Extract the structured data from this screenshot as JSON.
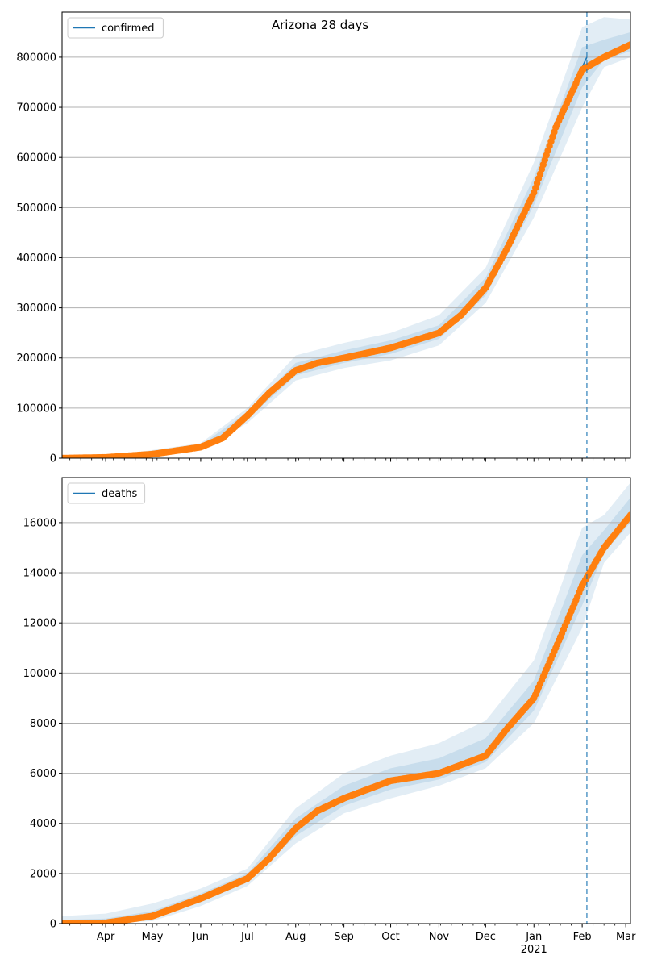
{
  "figure": {
    "title": "Arizona 28 days"
  },
  "colors": {
    "fit_line": "#1f77b4",
    "observed": "#ff7f0e",
    "band": "#1f77b4",
    "grid": "#b0b0b0",
    "forecast_marker": "#1f77b4"
  },
  "chart_data": [
    {
      "type": "line",
      "name": "confirmed-panel",
      "title": "Arizona 28 days",
      "xlabel": "",
      "ylabel": "",
      "x_type": "date",
      "xlim": [
        "2020-03-04",
        "2021-03-04"
      ],
      "ylim": [
        0,
        890000
      ],
      "yticks": [
        0,
        100000,
        200000,
        300000,
        400000,
        500000,
        600000,
        700000,
        800000
      ],
      "grid": "horizontal",
      "legend": {
        "position": "upper left",
        "entries": [
          "confirmed"
        ]
      },
      "forecast_start": "2021-02-04",
      "series": [
        {
          "name": "confirmed",
          "style": "line",
          "points": [
            [
              "2020-03-04",
              0
            ],
            [
              "2020-04-01",
              1500
            ],
            [
              "2020-05-01",
              8000
            ],
            [
              "2020-06-01",
              22000
            ],
            [
              "2020-06-15",
              40000
            ],
            [
              "2020-07-01",
              85000
            ],
            [
              "2020-07-15",
              130000
            ],
            [
              "2020-08-01",
              175000
            ],
            [
              "2020-08-15",
              190000
            ],
            [
              "2020-09-01",
              200000
            ],
            [
              "2020-10-01",
              220000
            ],
            [
              "2020-11-01",
              250000
            ],
            [
              "2020-11-15",
              285000
            ],
            [
              "2020-12-01",
              340000
            ],
            [
              "2020-12-15",
              420000
            ],
            [
              "2021-01-01",
              530000
            ],
            [
              "2021-01-15",
              670000
            ],
            [
              "2021-02-01",
              780000
            ],
            [
              "2021-02-04",
              800000
            ]
          ]
        },
        {
          "name": "observed",
          "style": "markers",
          "points": [
            [
              "2020-03-04",
              0
            ],
            [
              "2020-04-01",
              1500
            ],
            [
              "2020-05-01",
              8000
            ],
            [
              "2020-06-01",
              22000
            ],
            [
              "2020-06-15",
              40000
            ],
            [
              "2020-07-01",
              85000
            ],
            [
              "2020-07-15",
              130000
            ],
            [
              "2020-08-01",
              175000
            ],
            [
              "2020-08-15",
              190000
            ],
            [
              "2020-09-01",
              200000
            ],
            [
              "2020-10-01",
              220000
            ],
            [
              "2020-11-01",
              250000
            ],
            [
              "2020-11-15",
              285000
            ],
            [
              "2020-12-01",
              340000
            ],
            [
              "2020-12-15",
              420000
            ],
            [
              "2021-01-01",
              530000
            ],
            [
              "2021-01-15",
              660000
            ],
            [
              "2021-02-01",
              775000
            ],
            [
              "2021-02-15",
              800000
            ],
            [
              "2021-03-04",
              825000
            ]
          ]
        }
      ],
      "bands": [
        {
          "points": [
            [
              "2020-04-01",
              0,
              3000
            ],
            [
              "2020-06-01",
              15000,
              30000
            ],
            [
              "2020-07-01",
              70000,
              100000
            ],
            [
              "2020-08-01",
              155000,
              205000
            ],
            [
              "2020-09-01",
              180000,
              230000
            ],
            [
              "2020-10-01",
              195000,
              250000
            ],
            [
              "2020-11-01",
              225000,
              285000
            ],
            [
              "2020-12-01",
              310000,
              380000
            ],
            [
              "2021-01-01",
              480000,
              590000
            ],
            [
              "2021-02-01",
              700000,
              860000
            ],
            [
              "2021-02-15",
              780000,
              880000
            ],
            [
              "2021-03-04",
              800000,
              875000
            ]
          ]
        },
        {
          "points": [
            [
              "2020-04-01",
              0,
              2000
            ],
            [
              "2020-06-01",
              18000,
              26000
            ],
            [
              "2020-07-01",
              78000,
              92000
            ],
            [
              "2020-08-01",
              165000,
              190000
            ],
            [
              "2020-09-01",
              190000,
              215000
            ],
            [
              "2020-10-01",
              208000,
              235000
            ],
            [
              "2020-11-01",
              238000,
              265000
            ],
            [
              "2020-12-01",
              325000,
              360000
            ],
            [
              "2021-01-01",
              505000,
              560000
            ],
            [
              "2021-02-01",
              740000,
              820000
            ],
            [
              "2021-02-15",
              795000,
              835000
            ],
            [
              "2021-03-04",
              812000,
              850000
            ]
          ]
        }
      ]
    },
    {
      "type": "line",
      "name": "deaths-panel",
      "title": "",
      "xlabel": "",
      "ylabel": "",
      "x_type": "date",
      "xlim": [
        "2020-03-04",
        "2021-03-04"
      ],
      "ylim": [
        0,
        17800
      ],
      "yticks": [
        0,
        2000,
        4000,
        6000,
        8000,
        10000,
        12000,
        14000,
        16000
      ],
      "grid": "horizontal",
      "legend": {
        "position": "upper left",
        "entries": [
          "deaths"
        ]
      },
      "forecast_start": "2021-02-04",
      "xticks": [
        {
          "date": "2020-04-01",
          "label": "Apr"
        },
        {
          "date": "2020-05-01",
          "label": "May"
        },
        {
          "date": "2020-06-01",
          "label": "Jun"
        },
        {
          "date": "2020-07-01",
          "label": "Jul"
        },
        {
          "date": "2020-08-01",
          "label": "Aug"
        },
        {
          "date": "2020-09-01",
          "label": "Sep"
        },
        {
          "date": "2020-10-01",
          "label": "Oct"
        },
        {
          "date": "2020-11-01",
          "label": "Nov"
        },
        {
          "date": "2020-12-01",
          "label": "Dec"
        },
        {
          "date": "2021-01-01",
          "label": "Jan",
          "sublabel": "2021"
        },
        {
          "date": "2021-02-01",
          "label": "Feb"
        },
        {
          "date": "2021-03-01",
          "label": "Mar"
        }
      ],
      "series": [
        {
          "name": "deaths",
          "style": "line",
          "points": [
            [
              "2020-03-04",
              0
            ],
            [
              "2020-04-01",
              30
            ],
            [
              "2020-05-01",
              300
            ],
            [
              "2020-06-01",
              1000
            ],
            [
              "2020-07-01",
              1800
            ],
            [
              "2020-07-15",
              2600
            ],
            [
              "2020-08-01",
              3800
            ],
            [
              "2020-08-15",
              4500
            ],
            [
              "2020-09-01",
              5000
            ],
            [
              "2020-10-01",
              5700
            ],
            [
              "2020-11-01",
              6000
            ],
            [
              "2020-12-01",
              6700
            ],
            [
              "2020-12-15",
              7800
            ],
            [
              "2021-01-01",
              9000
            ],
            [
              "2021-01-15",
              11000
            ],
            [
              "2021-02-01",
              13500
            ],
            [
              "2021-02-04",
              14000
            ]
          ]
        },
        {
          "name": "observed",
          "style": "markers",
          "points": [
            [
              "2020-03-04",
              0
            ],
            [
              "2020-04-01",
              30
            ],
            [
              "2020-05-01",
              300
            ],
            [
              "2020-06-01",
              1000
            ],
            [
              "2020-07-01",
              1800
            ],
            [
              "2020-07-15",
              2600
            ],
            [
              "2020-08-01",
              3800
            ],
            [
              "2020-08-15",
              4500
            ],
            [
              "2020-09-01",
              5000
            ],
            [
              "2020-10-01",
              5700
            ],
            [
              "2020-11-01",
              6000
            ],
            [
              "2020-12-01",
              6700
            ],
            [
              "2020-12-15",
              7800
            ],
            [
              "2021-01-01",
              9000
            ],
            [
              "2021-01-15",
              11000
            ],
            [
              "2021-02-01",
              13500
            ],
            [
              "2021-02-15",
              15000
            ],
            [
              "2021-03-04",
              16300
            ]
          ]
        }
      ],
      "bands": [
        {
          "points": [
            [
              "2020-03-04",
              0,
              300
            ],
            [
              "2020-04-01",
              0,
              400
            ],
            [
              "2020-05-01",
              100,
              800
            ],
            [
              "2020-06-01",
              700,
              1400
            ],
            [
              "2020-07-01",
              1500,
              2200
            ],
            [
              "2020-08-01",
              3200,
              4600
            ],
            [
              "2020-09-01",
              4400,
              6000
            ],
            [
              "2020-10-01",
              5000,
              6700
            ],
            [
              "2020-11-01",
              5500,
              7200
            ],
            [
              "2020-12-01",
              6200,
              8100
            ],
            [
              "2021-01-01",
              8000,
              10500
            ],
            [
              "2021-02-01",
              11800,
              15800
            ],
            [
              "2021-02-15",
              14400,
              16300
            ],
            [
              "2021-03-04",
              15600,
              17600
            ]
          ]
        },
        {
          "points": [
            [
              "2020-03-04",
              0,
              150
            ],
            [
              "2020-04-01",
              0,
              200
            ],
            [
              "2020-05-01",
              200,
              500
            ],
            [
              "2020-06-01",
              850,
              1200
            ],
            [
              "2020-07-01",
              1650,
              2000
            ],
            [
              "2020-08-01",
              3500,
              4200
            ],
            [
              "2020-09-01",
              4700,
              5500
            ],
            [
              "2020-10-01",
              5350,
              6200
            ],
            [
              "2020-11-01",
              5750,
              6600
            ],
            [
              "2020-12-01",
              6450,
              7400
            ],
            [
              "2021-01-01",
              8500,
              9700
            ],
            [
              "2021-02-01",
              12700,
              14700
            ],
            [
              "2021-02-15",
              14800,
              15700
            ],
            [
              "2021-03-04",
              16000,
              17000
            ]
          ]
        }
      ]
    }
  ]
}
